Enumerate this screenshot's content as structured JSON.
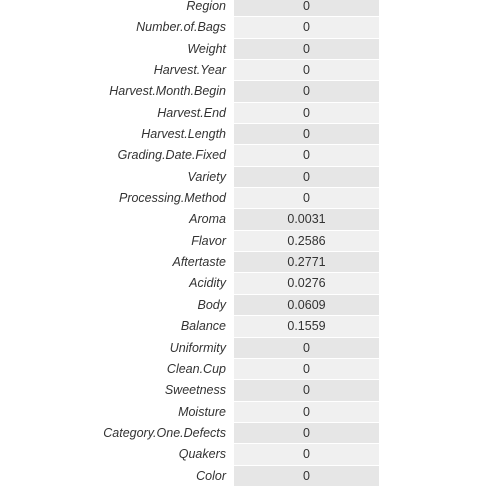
{
  "table": {
    "rows": [
      {
        "label": "Region",
        "value": "0"
      },
      {
        "label": "Number.of.Bags",
        "value": "0"
      },
      {
        "label": "Weight",
        "value": "0"
      },
      {
        "label": "Harvest.Year",
        "value": "0"
      },
      {
        "label": "Harvest.Month.Begin",
        "value": "0"
      },
      {
        "label": "Harvest.End",
        "value": "0"
      },
      {
        "label": "Harvest.Length",
        "value": "0"
      },
      {
        "label": "Grading.Date.Fixed",
        "value": "0"
      },
      {
        "label": "Variety",
        "value": "0"
      },
      {
        "label": "Processing.Method",
        "value": "0"
      },
      {
        "label": "Aroma",
        "value": "0.0031"
      },
      {
        "label": "Flavor",
        "value": "0.2586"
      },
      {
        "label": "Aftertaste",
        "value": "0.2771"
      },
      {
        "label": "Acidity",
        "value": "0.0276"
      },
      {
        "label": "Body",
        "value": "0.0609"
      },
      {
        "label": "Balance",
        "value": "0.1559"
      },
      {
        "label": "Uniformity",
        "value": "0"
      },
      {
        "label": "Clean.Cup",
        "value": "0"
      },
      {
        "label": "Sweetness",
        "value": "0"
      },
      {
        "label": "Moisture",
        "value": "0"
      },
      {
        "label": "Category.One.Defects",
        "value": "0"
      },
      {
        "label": "Quakers",
        "value": "0"
      },
      {
        "label": "Color",
        "value": "0"
      }
    ]
  }
}
